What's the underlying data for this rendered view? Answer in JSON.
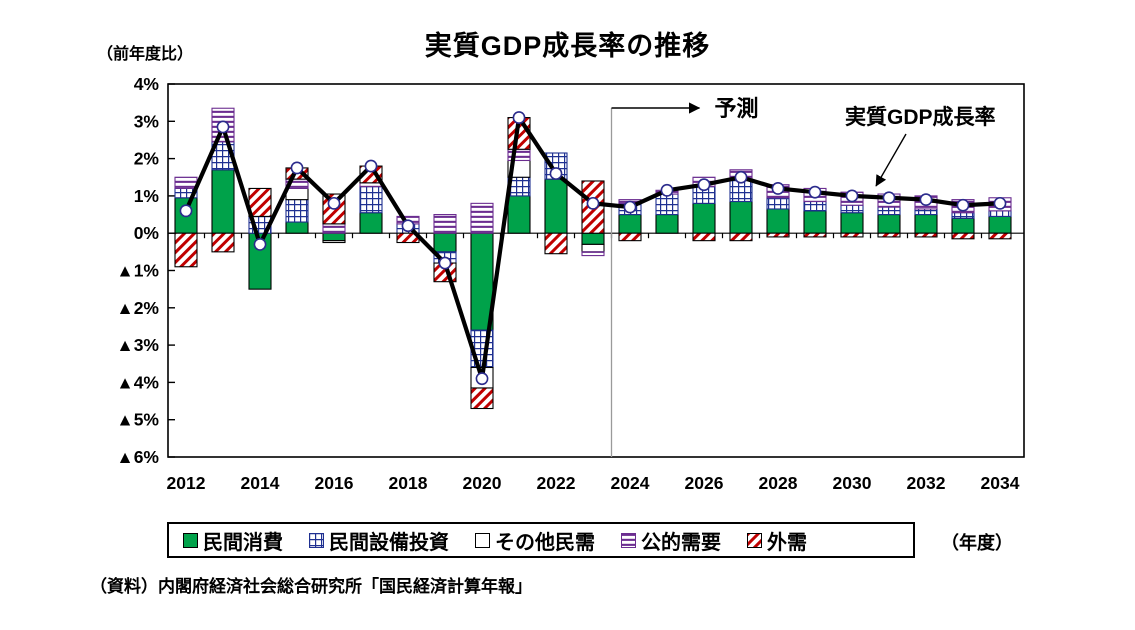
{
  "title": "実質GDP成長率の推移",
  "y_axis_note": "（前年度比）",
  "x_axis_note": "（年度）",
  "source": "（資料）内閣府経済社会総合研究所「国民経済計算年報」",
  "annotations": {
    "forecast_label": "予測",
    "line_label": "実質GDP成長率"
  },
  "colors": {
    "consumption_green": "#00a24a",
    "capex_grid_blue": "#1f3091",
    "public_stripe_purple": "#6b2d90",
    "external_hatch_red": "#c00000",
    "line_black": "#000000",
    "marker_edge_navy": "#2b2b8c",
    "forecast_divider_gray": "#9a9a9a"
  },
  "legend": {
    "items": [
      {
        "key": "consumption",
        "label": "民間消費",
        "pattern": "solid-green"
      },
      {
        "key": "capex",
        "label": "民間設備投資",
        "pattern": "blue-grid"
      },
      {
        "key": "other-private",
        "label": "その他民需",
        "pattern": "white"
      },
      {
        "key": "public",
        "label": "公的需要",
        "pattern": "purple-stripes"
      },
      {
        "key": "external",
        "label": "外需",
        "pattern": "red-hatch"
      }
    ]
  },
  "chart_data": {
    "type": "bar",
    "subtype": "stacked-bar-with-line",
    "x": [
      2012,
      2013,
      2014,
      2015,
      2016,
      2017,
      2018,
      2019,
      2020,
      2021,
      2022,
      2023,
      2024,
      2025,
      2026,
      2027,
      2028,
      2029,
      2030,
      2031,
      2032,
      2033,
      2034
    ],
    "x_tick_labels": [
      "2012",
      "2014",
      "2016",
      "2018",
      "2020",
      "2022",
      "2024",
      "2026",
      "2028",
      "2030",
      "2032",
      "2034"
    ],
    "y_ticks": [
      "4%",
      "3%",
      "2%",
      "1%",
      "0%",
      "▲1%",
      "▲2%",
      "▲3%",
      "▲4%",
      "▲5%",
      "▲6%"
    ],
    "ylim": [
      -6,
      4
    ],
    "unit": "percent, contribution to real GDP growth",
    "forecast_start": 2024,
    "series": [
      {
        "name": "民間消費",
        "key": "consumption",
        "pattern": "solid-green",
        "values": [
          0.95,
          1.7,
          -1.5,
          0.3,
          -0.2,
          0.55,
          0.0,
          -0.5,
          -2.6,
          1.0,
          1.45,
          -0.3,
          0.5,
          0.5,
          0.8,
          0.85,
          0.65,
          0.6,
          0.55,
          0.5,
          0.5,
          0.4,
          0.45
        ]
      },
      {
        "name": "民間設備投資",
        "key": "capex",
        "pattern": "blue-grid",
        "values": [
          0.25,
          0.75,
          0.45,
          0.6,
          0.0,
          0.7,
          0.25,
          -0.3,
          -1.0,
          0.5,
          0.7,
          0.0,
          0.3,
          0.55,
          0.45,
          0.6,
          0.3,
          0.25,
          0.2,
          0.2,
          0.15,
          0.15,
          0.15
        ]
      },
      {
        "name": "その他民需",
        "key": "other-private",
        "pattern": "white",
        "values": [
          0.0,
          0.0,
          0.0,
          0.3,
          -0.05,
          0.0,
          0.0,
          0.0,
          -0.55,
          0.45,
          0.0,
          -0.2,
          0.0,
          0.0,
          0.0,
          0.0,
          0.0,
          0.0,
          0.0,
          0.0,
          0.0,
          0.0,
          0.0
        ]
      },
      {
        "name": "公的需要",
        "key": "public",
        "pattern": "purple-stripes",
        "values": [
          0.3,
          0.9,
          0.0,
          0.25,
          0.25,
          0.1,
          0.2,
          0.5,
          0.8,
          0.3,
          0.0,
          -0.1,
          0.1,
          0.1,
          0.25,
          0.25,
          0.35,
          0.35,
          0.35,
          0.35,
          0.35,
          0.35,
          0.35
        ]
      },
      {
        "name": "外需",
        "key": "external",
        "pattern": "red-hatch",
        "values": [
          -0.9,
          -0.5,
          0.75,
          0.3,
          0.8,
          0.45,
          -0.25,
          -0.5,
          -0.55,
          0.85,
          -0.55,
          1.4,
          -0.2,
          0.0,
          -0.2,
          -0.2,
          -0.1,
          -0.1,
          -0.1,
          -0.1,
          -0.1,
          -0.15,
          -0.15
        ]
      }
    ],
    "line": {
      "name": "実質GDP成長率",
      "values": [
        0.6,
        2.85,
        -0.3,
        1.75,
        0.8,
        1.8,
        0.2,
        -0.8,
        -3.9,
        3.1,
        1.6,
        0.8,
        0.7,
        1.15,
        1.3,
        1.5,
        1.2,
        1.1,
        1.0,
        0.95,
        0.9,
        0.75,
        0.8
      ]
    }
  }
}
